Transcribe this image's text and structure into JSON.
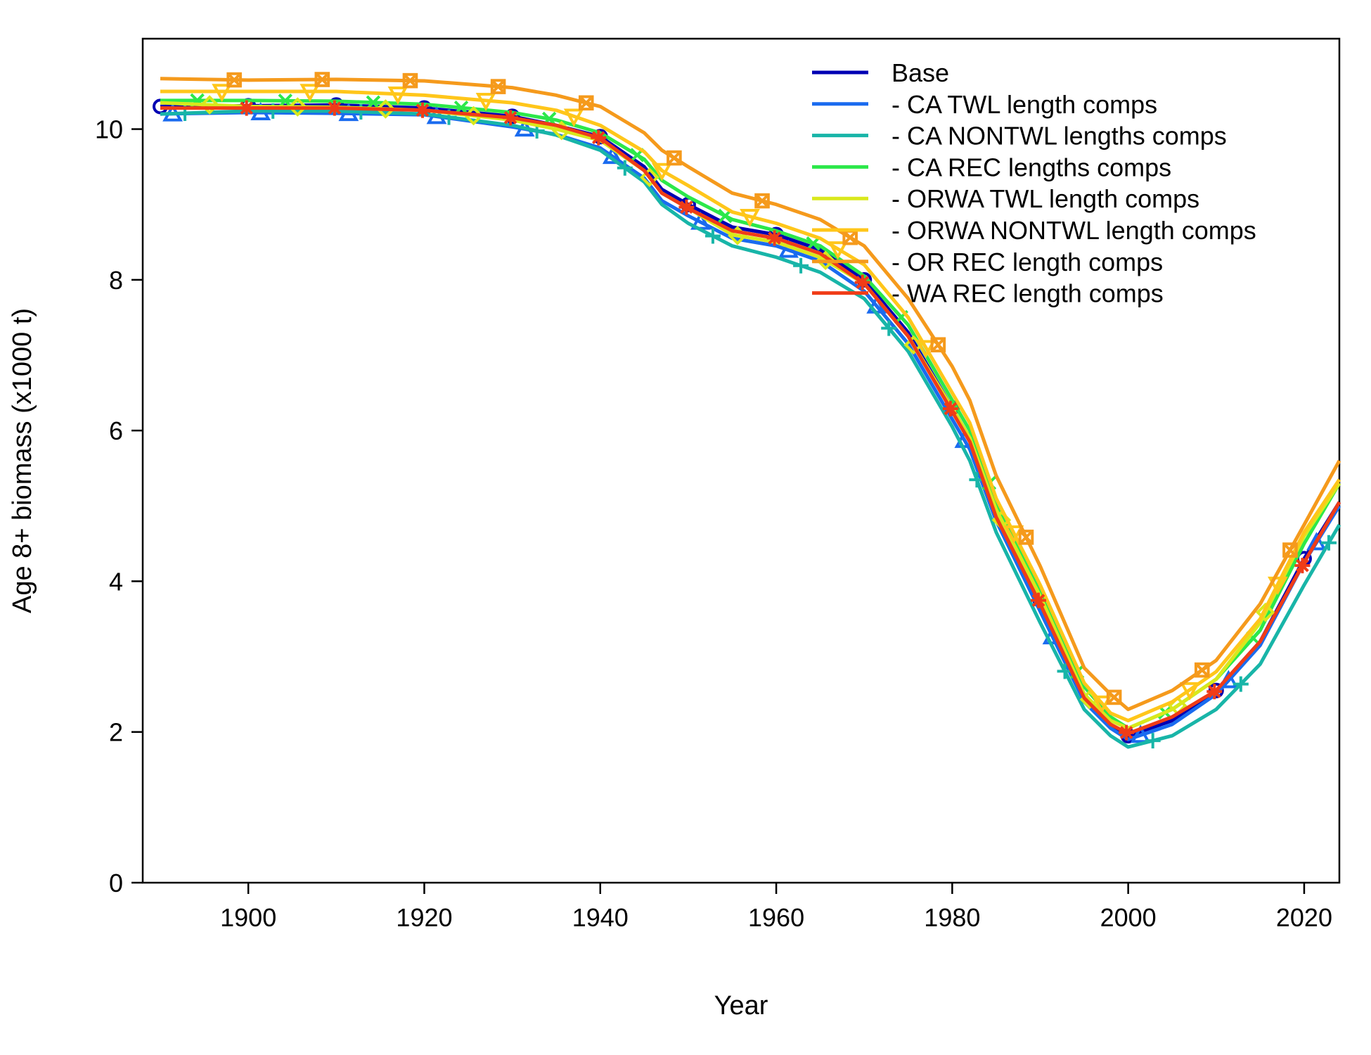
{
  "chart_data": {
    "type": "line",
    "title": "",
    "xlabel": "Year",
    "ylabel": "Age 8+ biomass (x1000 t)",
    "xlim": [
      1888,
      2024
    ],
    "ylim": [
      0,
      11.2
    ],
    "x_ticks": [
      1900,
      1920,
      1940,
      1960,
      1980,
      2000,
      2020
    ],
    "y_ticks": [
      0,
      2,
      4,
      6,
      8,
      10
    ],
    "x_tick_labels": [
      "1900",
      "1920",
      "1940",
      "1960",
      "1980",
      "2000",
      "2020"
    ],
    "y_tick_labels": [
      "0",
      "2",
      "4",
      "6",
      "8",
      "10"
    ],
    "grid": false,
    "legend_position": "top-right",
    "series": [
      {
        "name": "Base",
        "color": "#0000b3",
        "marker": "circle",
        "x": [
          1890,
          1900,
          1910,
          1920,
          1930,
          1935,
          1940,
          1945,
          1947,
          1950,
          1955,
          1960,
          1965,
          1970,
          1975,
          1980,
          1982,
          1985,
          1990,
          1995,
          1998,
          2000,
          2005,
          2010,
          2015,
          2020,
          2024
        ],
        "y": [
          10.3,
          10.31,
          10.32,
          10.28,
          10.17,
          10.05,
          9.9,
          9.5,
          9.2,
          9.0,
          8.7,
          8.6,
          8.4,
          8.0,
          7.3,
          6.3,
          5.9,
          4.9,
          3.75,
          2.5,
          2.1,
          1.95,
          2.15,
          2.55,
          3.2,
          4.3,
          5.05
        ]
      },
      {
        "name": "- CA TWL length comps",
        "color": "#1a6bef",
        "marker": "triangle",
        "x": [
          1890,
          1900,
          1910,
          1920,
          1930,
          1935,
          1940,
          1945,
          1947,
          1950,
          1955,
          1960,
          1965,
          1970,
          1975,
          1980,
          1982,
          1985,
          1990,
          1995,
          1998,
          2000,
          2005,
          2010,
          2015,
          2020,
          2024
        ],
        "y": [
          10.2,
          10.22,
          10.21,
          10.19,
          10.03,
          9.93,
          9.75,
          9.35,
          9.05,
          8.85,
          8.55,
          8.45,
          8.25,
          7.85,
          7.15,
          6.15,
          5.75,
          4.8,
          3.6,
          2.4,
          2.05,
          1.9,
          2.1,
          2.5,
          3.15,
          4.25,
          5.0
        ]
      },
      {
        "name": "- CA NONTWL lengths comps",
        "color": "#18b5a8",
        "marker": "plus",
        "x": [
          1890,
          1900,
          1910,
          1920,
          1930,
          1935,
          1940,
          1945,
          1947,
          1950,
          1955,
          1960,
          1965,
          1970,
          1975,
          1980,
          1982,
          1985,
          1990,
          1995,
          1998,
          2000,
          2005,
          2010,
          2015,
          2020,
          2024
        ],
        "y": [
          10.2,
          10.24,
          10.24,
          10.2,
          10.05,
          9.92,
          9.72,
          9.3,
          9.0,
          8.75,
          8.45,
          8.3,
          8.1,
          7.75,
          7.05,
          6.05,
          5.6,
          4.65,
          3.45,
          2.3,
          1.95,
          1.8,
          1.95,
          2.3,
          2.9,
          3.95,
          4.75
        ]
      },
      {
        "name": "- CA REC lengths comps",
        "color": "#2ce84a",
        "marker": "x",
        "x": [
          1890,
          1900,
          1910,
          1920,
          1930,
          1935,
          1940,
          1945,
          1947,
          1950,
          1955,
          1960,
          1965,
          1970,
          1975,
          1980,
          1982,
          1985,
          1990,
          1995,
          1998,
          2000,
          2005,
          2010,
          2015,
          2020,
          2024
        ],
        "y": [
          10.38,
          10.38,
          10.37,
          10.33,
          10.22,
          10.12,
          9.95,
          9.6,
          9.32,
          9.1,
          8.8,
          8.65,
          8.45,
          8.05,
          7.4,
          6.4,
          6.0,
          5.05,
          3.85,
          2.6,
          2.2,
          2.05,
          2.3,
          2.7,
          3.35,
          4.5,
          5.3
        ]
      },
      {
        "name": "- ORWA TWL length comps",
        "color": "#d9e81c",
        "marker": "diamond",
        "x": [
          1890,
          1900,
          1910,
          1920,
          1930,
          1935,
          1940,
          1945,
          1947,
          1950,
          1955,
          1960,
          1965,
          1970,
          1975,
          1980,
          1982,
          1985,
          1990,
          1995,
          1998,
          2000,
          2005,
          2010,
          2015,
          2020,
          2024
        ],
        "y": [
          10.35,
          10.3,
          10.29,
          10.25,
          10.12,
          10.0,
          9.85,
          9.45,
          9.15,
          8.95,
          8.6,
          8.5,
          8.3,
          7.95,
          7.25,
          6.3,
          5.9,
          4.95,
          3.8,
          2.5,
          2.15,
          2.05,
          2.3,
          2.7,
          3.45,
          4.6,
          5.3
        ]
      },
      {
        "name": "- ORWA NONTWL length comps",
        "color": "#ffc61a",
        "marker": "triangle-down",
        "x": [
          1890,
          1900,
          1910,
          1920,
          1930,
          1935,
          1940,
          1945,
          1947,
          1950,
          1955,
          1960,
          1965,
          1970,
          1975,
          1980,
          1982,
          1985,
          1990,
          1995,
          1998,
          2000,
          2005,
          2010,
          2015,
          2020,
          2024
        ],
        "y": [
          10.5,
          10.5,
          10.5,
          10.45,
          10.35,
          10.25,
          10.05,
          9.7,
          9.45,
          9.25,
          8.9,
          8.75,
          8.55,
          8.2,
          7.5,
          6.5,
          6.1,
          5.1,
          3.95,
          2.65,
          2.25,
          2.15,
          2.4,
          2.8,
          3.5,
          4.65,
          5.35
        ]
      },
      {
        "name": "- OR REC length comps",
        "color": "#f59a1c",
        "marker": "square-x",
        "x": [
          1890,
          1900,
          1910,
          1920,
          1930,
          1935,
          1940,
          1945,
          1947,
          1950,
          1955,
          1960,
          1965,
          1970,
          1975,
          1980,
          1982,
          1985,
          1990,
          1995,
          1998,
          2000,
          2005,
          2010,
          2015,
          2020,
          2024
        ],
        "y": [
          10.67,
          10.65,
          10.66,
          10.64,
          10.55,
          10.45,
          10.3,
          9.95,
          9.72,
          9.5,
          9.15,
          9.0,
          8.8,
          8.45,
          7.75,
          6.85,
          6.4,
          5.4,
          4.2,
          2.85,
          2.5,
          2.3,
          2.55,
          2.95,
          3.7,
          4.75,
          5.6
        ]
      },
      {
        "name": "- WA REC length comps",
        "color": "#f03c17",
        "marker": "asterisk",
        "x": [
          1890,
          1900,
          1910,
          1920,
          1930,
          1935,
          1940,
          1945,
          1947,
          1950,
          1955,
          1960,
          1965,
          1970,
          1975,
          1980,
          1982,
          1985,
          1990,
          1995,
          1998,
          2000,
          2005,
          2010,
          2015,
          2020,
          2024
        ],
        "y": [
          10.28,
          10.28,
          10.28,
          10.25,
          10.15,
          10.05,
          9.88,
          9.45,
          9.15,
          8.95,
          8.65,
          8.55,
          8.35,
          7.95,
          7.25,
          6.25,
          5.85,
          4.85,
          3.7,
          2.45,
          2.1,
          1.98,
          2.2,
          2.55,
          3.2,
          4.25,
          5.05
        ]
      }
    ]
  }
}
